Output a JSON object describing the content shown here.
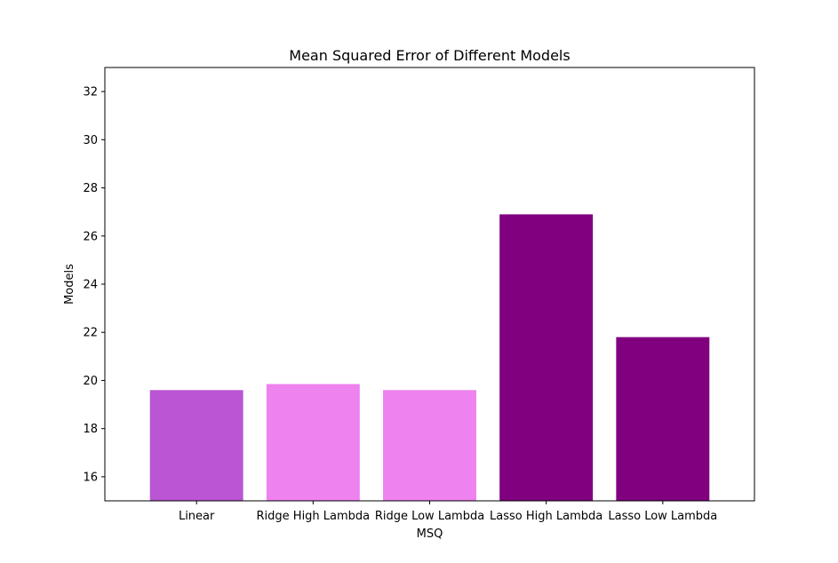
{
  "chart_data": {
    "type": "bar",
    "title": "Mean Squared Error of Different Models",
    "xlabel": "MSQ",
    "ylabel": "Models",
    "categories": [
      "Linear",
      "Ridge High Lambda",
      "Ridge Low Lambda",
      "Lasso High Lambda",
      "Lasso Low Lambda"
    ],
    "values": [
      19.6,
      19.85,
      19.6,
      26.9,
      21.8
    ],
    "colors": [
      "#ba55d3",
      "#ee82ee",
      "#ee82ee",
      "#800080",
      "#800080"
    ],
    "ylim": [
      15,
      33
    ],
    "yticks": [
      16,
      18,
      20,
      22,
      24,
      26,
      28,
      30,
      32
    ],
    "grid": false,
    "legend": "none"
  }
}
